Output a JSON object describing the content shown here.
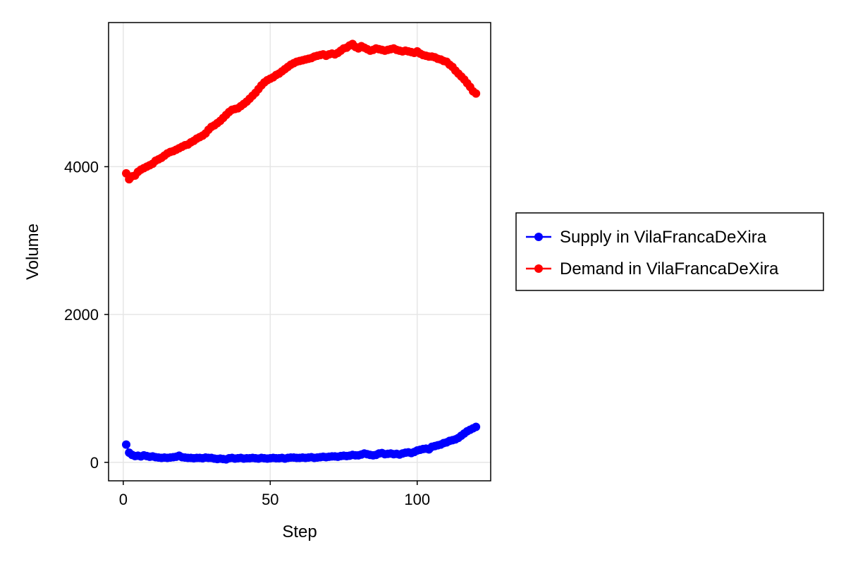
{
  "chart_data": {
    "type": "scatter",
    "xlabel": "Step",
    "ylabel": "Volume",
    "xlim": [
      -5,
      125
    ],
    "ylim": [
      -250,
      5950
    ],
    "xticks": [
      0,
      50,
      100
    ],
    "yticks": [
      0,
      2000,
      4000
    ],
    "grid": true,
    "legend_position": "right",
    "series": [
      {
        "name": "Supply in VilaFrancaDeXira",
        "color": "#0000ff",
        "x": [
          1,
          2,
          3,
          4,
          5,
          6,
          7,
          8,
          9,
          10,
          11,
          12,
          13,
          14,
          15,
          16,
          17,
          18,
          19,
          20,
          21,
          22,
          23,
          24,
          25,
          26,
          27,
          28,
          29,
          30,
          31,
          32,
          33,
          34,
          35,
          36,
          37,
          38,
          39,
          40,
          41,
          42,
          43,
          44,
          45,
          46,
          47,
          48,
          49,
          50,
          51,
          52,
          53,
          54,
          55,
          56,
          57,
          58,
          59,
          60,
          61,
          62,
          63,
          64,
          65,
          66,
          67,
          68,
          69,
          70,
          71,
          72,
          73,
          74,
          75,
          76,
          77,
          78,
          79,
          80,
          81,
          82,
          83,
          84,
          85,
          86,
          87,
          88,
          89,
          90,
          91,
          92,
          93,
          94,
          95,
          96,
          97,
          98,
          99,
          100,
          101,
          102,
          103,
          104,
          105,
          106,
          107,
          108,
          109,
          110,
          111,
          112,
          113,
          114,
          115,
          116,
          117,
          118,
          119,
          120
        ],
        "y": [
          240,
          130,
          100,
          85,
          90,
          80,
          95,
          85,
          75,
          80,
          70,
          65,
          60,
          65,
          60,
          65,
          70,
          75,
          90,
          70,
          65,
          60,
          60,
          55,
          60,
          60,
          55,
          65,
          60,
          60,
          50,
          45,
          50,
          45,
          40,
          55,
          60,
          50,
          55,
          60,
          50,
          55,
          55,
          60,
          55,
          50,
          60,
          55,
          50,
          55,
          60,
          55,
          55,
          60,
          50,
          60,
          65,
          65,
          60,
          60,
          65,
          60,
          65,
          70,
          60,
          65,
          70,
          75,
          70,
          75,
          80,
          80,
          75,
          85,
          90,
          85,
          90,
          100,
          95,
          95,
          105,
          120,
          110,
          100,
          95,
          100,
          120,
          125,
          110,
          115,
          120,
          110,
          115,
          105,
          120,
          130,
          135,
          125,
          140,
          160,
          170,
          180,
          185,
          175,
          210,
          220,
          230,
          240,
          260,
          270,
          290,
          300,
          310,
          330,
          360,
          390,
          420,
          440,
          460,
          480
        ],
        "values_note": ""
      },
      {
        "name": "Demand in VilaFrancaDeXira",
        "color": "#ff0000",
        "x": [
          1,
          2,
          3,
          4,
          5,
          6,
          7,
          8,
          9,
          10,
          11,
          12,
          13,
          14,
          15,
          16,
          17,
          18,
          19,
          20,
          21,
          22,
          23,
          24,
          25,
          26,
          27,
          28,
          29,
          30,
          31,
          32,
          33,
          34,
          35,
          36,
          37,
          38,
          39,
          40,
          41,
          42,
          43,
          44,
          45,
          46,
          47,
          48,
          49,
          50,
          51,
          52,
          53,
          54,
          55,
          56,
          57,
          58,
          59,
          60,
          61,
          62,
          63,
          64,
          65,
          66,
          67,
          68,
          69,
          70,
          71,
          72,
          73,
          74,
          75,
          76,
          77,
          78,
          79,
          80,
          81,
          82,
          83,
          84,
          85,
          86,
          87,
          88,
          89,
          90,
          91,
          92,
          93,
          94,
          95,
          96,
          97,
          98,
          99,
          100,
          101,
          102,
          103,
          104,
          105,
          106,
          107,
          108,
          109,
          110,
          111,
          112,
          113,
          114,
          115,
          116,
          117,
          118,
          119,
          120
        ],
        "y": [
          3910,
          3830,
          3870,
          3880,
          3930,
          3960,
          3980,
          4000,
          4020,
          4040,
          4080,
          4100,
          4120,
          4150,
          4180,
          4200,
          4210,
          4230,
          4250,
          4270,
          4290,
          4300,
          4330,
          4350,
          4380,
          4400,
          4420,
          4450,
          4500,
          4540,
          4560,
          4590,
          4620,
          4660,
          4700,
          4740,
          4770,
          4780,
          4790,
          4820,
          4850,
          4880,
          4920,
          4960,
          5000,
          5050,
          5100,
          5140,
          5170,
          5190,
          5210,
          5240,
          5260,
          5290,
          5320,
          5350,
          5380,
          5400,
          5420,
          5430,
          5440,
          5450,
          5460,
          5470,
          5490,
          5500,
          5510,
          5520,
          5500,
          5520,
          5530,
          5520,
          5540,
          5570,
          5600,
          5610,
          5640,
          5660,
          5620,
          5600,
          5630,
          5610,
          5590,
          5570,
          5580,
          5600,
          5590,
          5580,
          5570,
          5580,
          5590,
          5600,
          5580,
          5570,
          5560,
          5570,
          5560,
          5550,
          5540,
          5560,
          5530,
          5510,
          5500,
          5490,
          5490,
          5480,
          5460,
          5450,
          5430,
          5420,
          5380,
          5350,
          5300,
          5260,
          5220,
          5180,
          5130,
          5080,
          5020,
          4990
        ]
      }
    ]
  }
}
